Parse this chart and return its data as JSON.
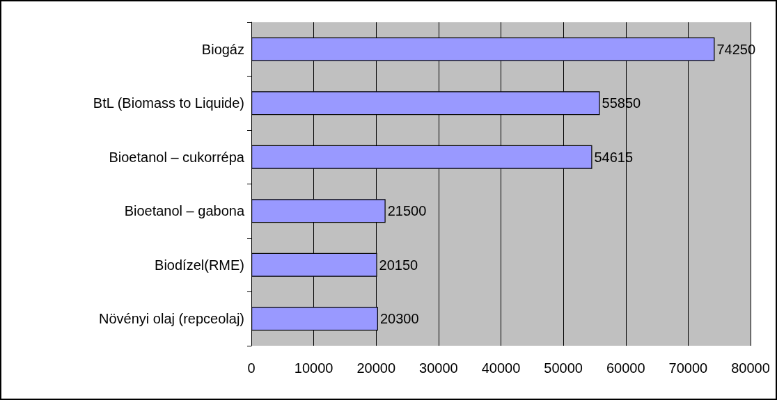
{
  "chart_data": {
    "type": "bar",
    "orientation": "horizontal",
    "categories": [
      "Biogáz",
      "BtL (Biomass to Liquide)",
      "Bioetanol – cukorrépa",
      "Bioetanol – gabona",
      "Biodízel(RME)",
      "Növényi olaj (repceolaj)"
    ],
    "values": [
      74250,
      55850,
      54615,
      21500,
      20150,
      20300
    ],
    "color": "#9999ff",
    "xlim": [
      0,
      80000
    ],
    "xticks": [
      0,
      10000,
      20000,
      30000,
      40000,
      50000,
      60000,
      70000,
      80000
    ],
    "grid": "x",
    "data_labels": true
  }
}
